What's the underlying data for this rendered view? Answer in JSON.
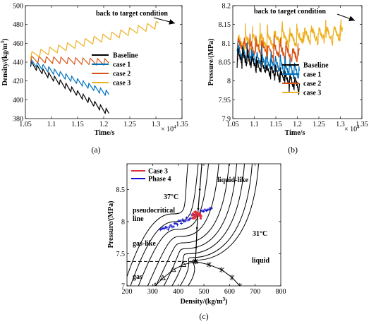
{
  "chart_data": [
    {
      "type": "line",
      "panel_label": "(a)",
      "xlabel": "Time/s",
      "ylabel": "Density/(kg/m3)",
      "ylabel_parts": [
        "Density/(kg/m",
        "3",
        ")"
      ],
      "x_multiplier": "× 10",
      "x_multiplier_exp": "4",
      "xlim": [
        1.05,
        1.35
      ],
      "ylim": [
        380,
        500
      ],
      "xticks": [
        "1.05",
        "1.1",
        "1.15",
        "1.2",
        "1.25",
        "1.3",
        "1.35"
      ],
      "yticks": [
        "380",
        "400",
        "420",
        "440",
        "460",
        "480",
        "500"
      ],
      "annotation": "back to target condition",
      "legend": {
        "position": "right",
        "entries": [
          "Baseline",
          "case 1",
          "case 2",
          "case 3"
        ]
      },
      "series": [
        {
          "name": "Baseline",
          "color": "#000000",
          "x_start": 1.06,
          "x_end": 1.21,
          "y_start": 438,
          "y_end": 386,
          "amplitude": 6,
          "period": 0.011
        },
        {
          "name": "case 1",
          "color": "#0072BD",
          "x_start": 1.06,
          "x_end": 1.21,
          "y_start": 440,
          "y_end": 406,
          "amplitude": 6,
          "period": 0.011
        },
        {
          "name": "case 2",
          "color": "#D95319",
          "x_start": 1.06,
          "x_end": 1.21,
          "y_start": 443,
          "y_end": 440,
          "amplitude": 7,
          "period": 0.014
        },
        {
          "name": "case 3",
          "color": "#EDB120",
          "x_start": 1.06,
          "x_end": 1.305,
          "y_start": 447,
          "y_end": 480,
          "amplitude": 8,
          "period": 0.017
        }
      ]
    },
    {
      "type": "line",
      "panel_label": "(b)",
      "xlabel": "Time/s",
      "ylabel": "Pressure/(MPa)",
      "x_multiplier": "× 10",
      "x_multiplier_exp": "4",
      "xlim": [
        1.05,
        1.35
      ],
      "ylim": [
        7.9,
        8.2
      ],
      "xticks": [
        "1.05",
        "1.1",
        "1.15",
        "1.2",
        "1.25",
        "1.3",
        "1.35"
      ],
      "yticks": [
        "7.9",
        "7.95",
        "8",
        "8.05",
        "8.1",
        "8.15",
        "8.2"
      ],
      "annotation": "back to target condition",
      "legend": {
        "position": "right",
        "entries": [
          "Baseline",
          "case 1",
          "case 2",
          "case 3"
        ]
      },
      "series": [
        {
          "name": "Baseline",
          "color": "#000000",
          "x_start": 1.06,
          "x_end": 1.205,
          "y_start": 8.07,
          "y_end": 7.99,
          "amplitude": 0.03,
          "period": 0.011
        },
        {
          "name": "case 1",
          "color": "#0072BD",
          "x_start": 1.06,
          "x_end": 1.205,
          "y_start": 8.08,
          "y_end": 8.02,
          "amplitude": 0.03,
          "period": 0.011
        },
        {
          "name": "case 2",
          "color": "#D95319",
          "x_start": 1.06,
          "x_end": 1.205,
          "y_start": 8.095,
          "y_end": 8.07,
          "amplitude": 0.035,
          "period": 0.014
        },
        {
          "name": "case 3",
          "color": "#EDB120",
          "x_start": 1.06,
          "x_end": 1.305,
          "y_start": 8.1,
          "y_end": 8.13,
          "amplitude": 0.04,
          "period": 0.017
        }
      ]
    },
    {
      "type": "line",
      "panel_label": "(c)",
      "xlabel": "Density/(kg/m3)",
      "xlabel_parts": [
        "Density/(kg/m",
        "3",
        ")"
      ],
      "ylabel": "Pressure/(MPa)",
      "xlim": [
        200,
        800
      ],
      "ylim": [
        7,
        8.9
      ],
      "xticks": [
        "200",
        "300",
        "400",
        "500",
        "600",
        "700",
        "800"
      ],
      "yticks": [
        "7",
        "7.5",
        "8",
        "8.5"
      ],
      "legend": {
        "position": "top-left",
        "entries": [
          "Case 3",
          "Phase 4"
        ]
      },
      "legend_colors": [
        "#E0303A",
        "#1010D0"
      ],
      "region_labels": [
        "liquid-like",
        "37°C",
        "pseudocritical",
        "line",
        "gas-like",
        "31°C",
        "liquid",
        "gas"
      ],
      "dashed_line_pressure": 7.38,
      "isotherm_rho_at_7": [
        210,
        235,
        265,
        300,
        330,
        360,
        390,
        420,
        450
      ],
      "isotherm_rho_at_9": [
        440,
        480,
        520,
        560,
        600,
        630,
        660,
        690,
        715
      ],
      "isotherm_mid_pressure": [
        8.12,
        8.0,
        7.88,
        7.77,
        7.67,
        7.58,
        7.5,
        7.44,
        7.4
      ],
      "isotherm_mid_rho": [
        380,
        390,
        400,
        410,
        420,
        430,
        440,
        455,
        467
      ],
      "saturation_dome": {
        "gas": [
          [
            310,
            7.0
          ],
          [
            340,
            7.12
          ],
          [
            380,
            7.25
          ],
          [
            420,
            7.33
          ],
          [
            467,
            7.38
          ]
        ],
        "liquid": [
          [
            467,
            7.38
          ],
          [
            520,
            7.33
          ],
          [
            570,
            7.25
          ],
          [
            610,
            7.13
          ],
          [
            640,
            7.0
          ]
        ]
      },
      "pseudocritical": [
        [
          467,
          7.38
        ],
        [
          470,
          7.6
        ],
        [
          473,
          7.9
        ],
        [
          478,
          8.2
        ],
        [
          484,
          8.5
        ],
        [
          492,
          8.9
        ]
      ],
      "case3_points": {
        "rho_min": 455,
        "rho_max": 490,
        "p_min": 8.05,
        "p_max": 8.16
      },
      "phase4_points": {
        "rho_min": 330,
        "rho_max": 530,
        "p_min": 7.85,
        "p_max": 8.22
      }
    }
  ]
}
